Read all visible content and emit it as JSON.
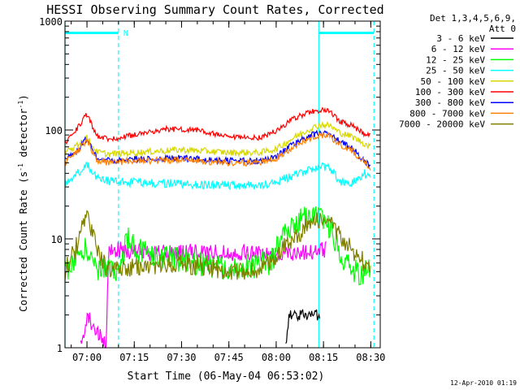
{
  "colors": {
    "bg": "#ffffff",
    "axis": "#000000",
    "cyan": "#00ffff",
    "black": "#000000",
    "magenta": "#ff00ff",
    "green": "#00ff00",
    "yellow": "#d8d800",
    "red": "#ff0000",
    "blue": "#0000ff",
    "orange": "#ff8000",
    "olive": "#808000"
  },
  "chart_data": {
    "type": "line",
    "title": "HESSI Observing Summary Count Rates, Corrected",
    "xlabel": "Start Time (06-May-04 06:53:02)",
    "ylabel_main": "Corrected Count Rate (s",
    "ylabel_sup1": "-1",
    "ylabel_mid": " detector",
    "ylabel_sup2": "-1",
    "ylabel_end": ")",
    "footer": "12-Apr-2010 01:19",
    "yscale": "log",
    "xlim": [
      "06:53:02",
      "08:33:00"
    ],
    "ylim": [
      1,
      1000
    ],
    "xticks": [
      "07:00",
      "07:15",
      "07:30",
      "07:45",
      "08:00",
      "08:15",
      "08:30"
    ],
    "yticks": [
      "1",
      "10",
      "100",
      "1000"
    ],
    "legend_header": [
      "Det 1,3,4,5,6,9,",
      "Att 0"
    ],
    "series": [
      {
        "name": "3 - 6 keV",
        "color": "black",
        "x": [
          "08:03",
          "08:04",
          "08:06",
          "08:08",
          "08:10",
          "08:12",
          "08:13",
          "08:14"
        ],
        "y": [
          1,
          2,
          2,
          2,
          2,
          2,
          2,
          2
        ]
      },
      {
        "name": "6 - 12 keV",
        "color": "magenta",
        "x": [
          "06:58",
          "07:00",
          "07:06",
          "07:07",
          "07:10",
          "07:20",
          "07:30",
          "07:40",
          "07:50",
          "08:00",
          "08:05",
          "08:10",
          "08:16"
        ],
        "y": [
          1,
          2,
          1,
          8,
          8,
          7.5,
          7.5,
          7.5,
          7.5,
          7.2,
          7.5,
          7.6,
          8
        ]
      },
      {
        "name": "12 - 25 keV",
        "color": "green",
        "x": [
          "06:53",
          "06:58",
          "07:00",
          "07:03",
          "07:07",
          "07:10",
          "07:13",
          "07:15",
          "07:20",
          "07:30",
          "07:40",
          "07:50",
          "07:58",
          "08:02",
          "08:06",
          "08:10",
          "08:14",
          "08:17",
          "08:22",
          "08:25",
          "08:28",
          "08:30"
        ],
        "y": [
          5,
          8,
          8,
          5.5,
          5,
          5,
          11,
          8,
          7,
          6.5,
          5.5,
          5.5,
          6,
          10,
          14,
          16,
          18,
          12,
          6,
          5,
          5,
          5
        ]
      },
      {
        "name": "25 - 50 keV",
        "color": "cyan",
        "x": [
          "06:53",
          "06:57",
          "07:00",
          "07:03",
          "07:07",
          "07:15",
          "07:30",
          "07:45",
          "07:55",
          "08:00",
          "08:05",
          "08:10",
          "08:14",
          "08:17",
          "08:20",
          "08:24",
          "08:28",
          "08:30"
        ],
        "y": [
          33,
          40,
          48,
          37,
          34,
          33,
          32,
          31,
          31,
          33,
          38,
          43,
          46,
          44,
          34,
          33,
          40,
          35
        ]
      },
      {
        "name": "50 - 100 keV",
        "color": "yellow",
        "x": [
          "06:53",
          "06:57",
          "07:00",
          "07:03",
          "07:07",
          "07:15",
          "07:30",
          "07:45",
          "07:55",
          "08:00",
          "08:05",
          "08:10",
          "08:14",
          "08:17",
          "08:20",
          "08:24",
          "08:28",
          "08:30"
        ],
        "y": [
          62,
          72,
          85,
          63,
          60,
          62,
          66,
          62,
          62,
          67,
          83,
          100,
          112,
          110,
          95,
          87,
          75,
          70
        ]
      },
      {
        "name": "100 - 300 keV",
        "color": "red",
        "x": [
          "06:53",
          "06:57",
          "07:00",
          "07:03",
          "07:07",
          "07:15",
          "07:25",
          "07:35",
          "07:45",
          "07:55",
          "08:00",
          "08:05",
          "08:10",
          "08:14",
          "08:17",
          "08:20",
          "08:24",
          "08:28",
          "08:30"
        ],
        "y": [
          75,
          105,
          140,
          88,
          82,
          90,
          102,
          100,
          85,
          85,
          98,
          125,
          145,
          152,
          148,
          120,
          110,
          92,
          88
        ]
      },
      {
        "name": "300 - 800 keV",
        "color": "blue",
        "x": [
          "06:53",
          "06:57",
          "07:00",
          "07:03",
          "07:07",
          "07:15",
          "07:30",
          "07:45",
          "07:55",
          "08:00",
          "08:05",
          "08:10",
          "08:14",
          "08:17",
          "08:20",
          "08:24",
          "08:28",
          "08:30"
        ],
        "y": [
          52,
          65,
          85,
          56,
          52,
          54,
          55,
          52,
          52,
          58,
          72,
          87,
          94,
          92,
          78,
          68,
          52,
          47
        ]
      },
      {
        "name": "800 - 7000 keV",
        "color": "orange",
        "x": [
          "06:53",
          "06:57",
          "07:00",
          "07:03",
          "07:07",
          "07:15",
          "07:30",
          "07:45",
          "07:55",
          "08:00",
          "08:05",
          "08:10",
          "08:14",
          "08:17",
          "08:20",
          "08:24",
          "08:28",
          "08:30"
        ],
        "y": [
          50,
          63,
          82,
          53,
          50,
          52,
          53,
          50,
          50,
          55,
          69,
          83,
          90,
          88,
          75,
          65,
          50,
          45
        ]
      },
      {
        "name": "7000 - 20000 keV",
        "color": "olive",
        "x": [
          "06:53",
          "06:57",
          "07:00",
          "07:03",
          "07:07",
          "07:15",
          "07:30",
          "07:45",
          "07:55",
          "08:00",
          "08:05",
          "08:10",
          "08:14",
          "08:17",
          "08:20",
          "08:24",
          "08:28",
          "08:30"
        ],
        "y": [
          5,
          9,
          17,
          8,
          5,
          5.5,
          6,
          5,
          5,
          7,
          10,
          13,
          15,
          14,
          11,
          8,
          6,
          5
        ]
      }
    ],
    "markers": {
      "color": "cyan",
      "vertical_lines_solid": [
        "06:53:02",
        "08:13:30"
      ],
      "vertical_lines_dashed": [
        "07:10:00",
        "08:31:00"
      ],
      "night_bars": [
        {
          "start": "06:53:02",
          "end": "07:10:00",
          "label": "N"
        },
        {
          "start": "08:13:30",
          "end": "08:31:00",
          "label": ""
        }
      ]
    }
  }
}
